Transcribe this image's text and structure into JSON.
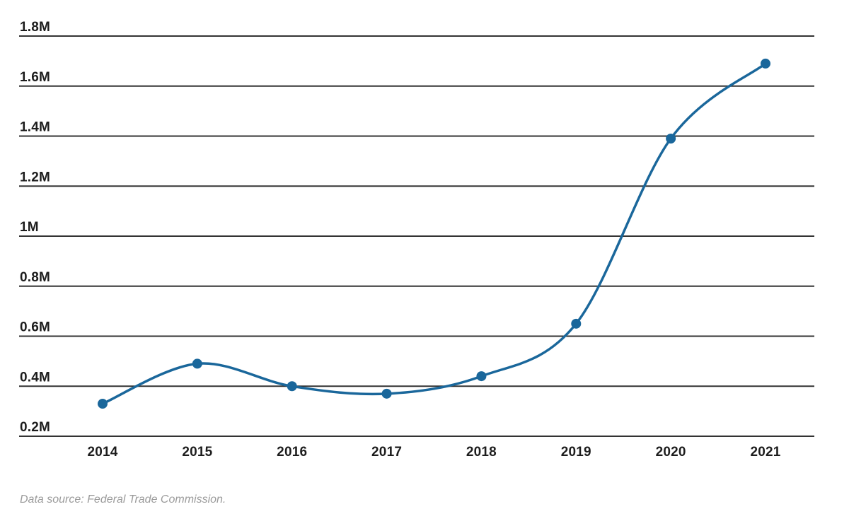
{
  "chart": {
    "source_note": "Data source: Federal Trade Commission."
  },
  "chart_data": {
    "type": "line",
    "title": "",
    "categories": [
      "2014",
      "2015",
      "2016",
      "2017",
      "2018",
      "2019",
      "2020",
      "2021"
    ],
    "values": [
      0.33,
      0.49,
      0.4,
      0.37,
      0.44,
      0.65,
      1.39,
      1.69
    ],
    "unit": "millions of reports",
    "xlabel": "",
    "ylabel": "",
    "y_ticks": [
      "0.2M",
      "0.4M",
      "0.6M",
      "0.8M",
      "1M",
      "1.2M",
      "1.4M",
      "1.6M",
      "1.8M"
    ],
    "y_tick_values": [
      0.2,
      0.4,
      0.6,
      0.8,
      1.0,
      1.2,
      1.4,
      1.6,
      1.8
    ],
    "ylim": [
      0.2,
      1.8
    ],
    "grid": "horizontal",
    "legend": "none",
    "curve": "smooth",
    "markers": "filled-circles",
    "colors": {
      "line": "#1a679b",
      "point": "#1a679b",
      "gridline": "#333333",
      "tick_label": "#1d1d1d",
      "source_note": "#9b9b9b",
      "background": "#ffffff"
    },
    "source_note": "Data source: Federal Trade Commission."
  }
}
